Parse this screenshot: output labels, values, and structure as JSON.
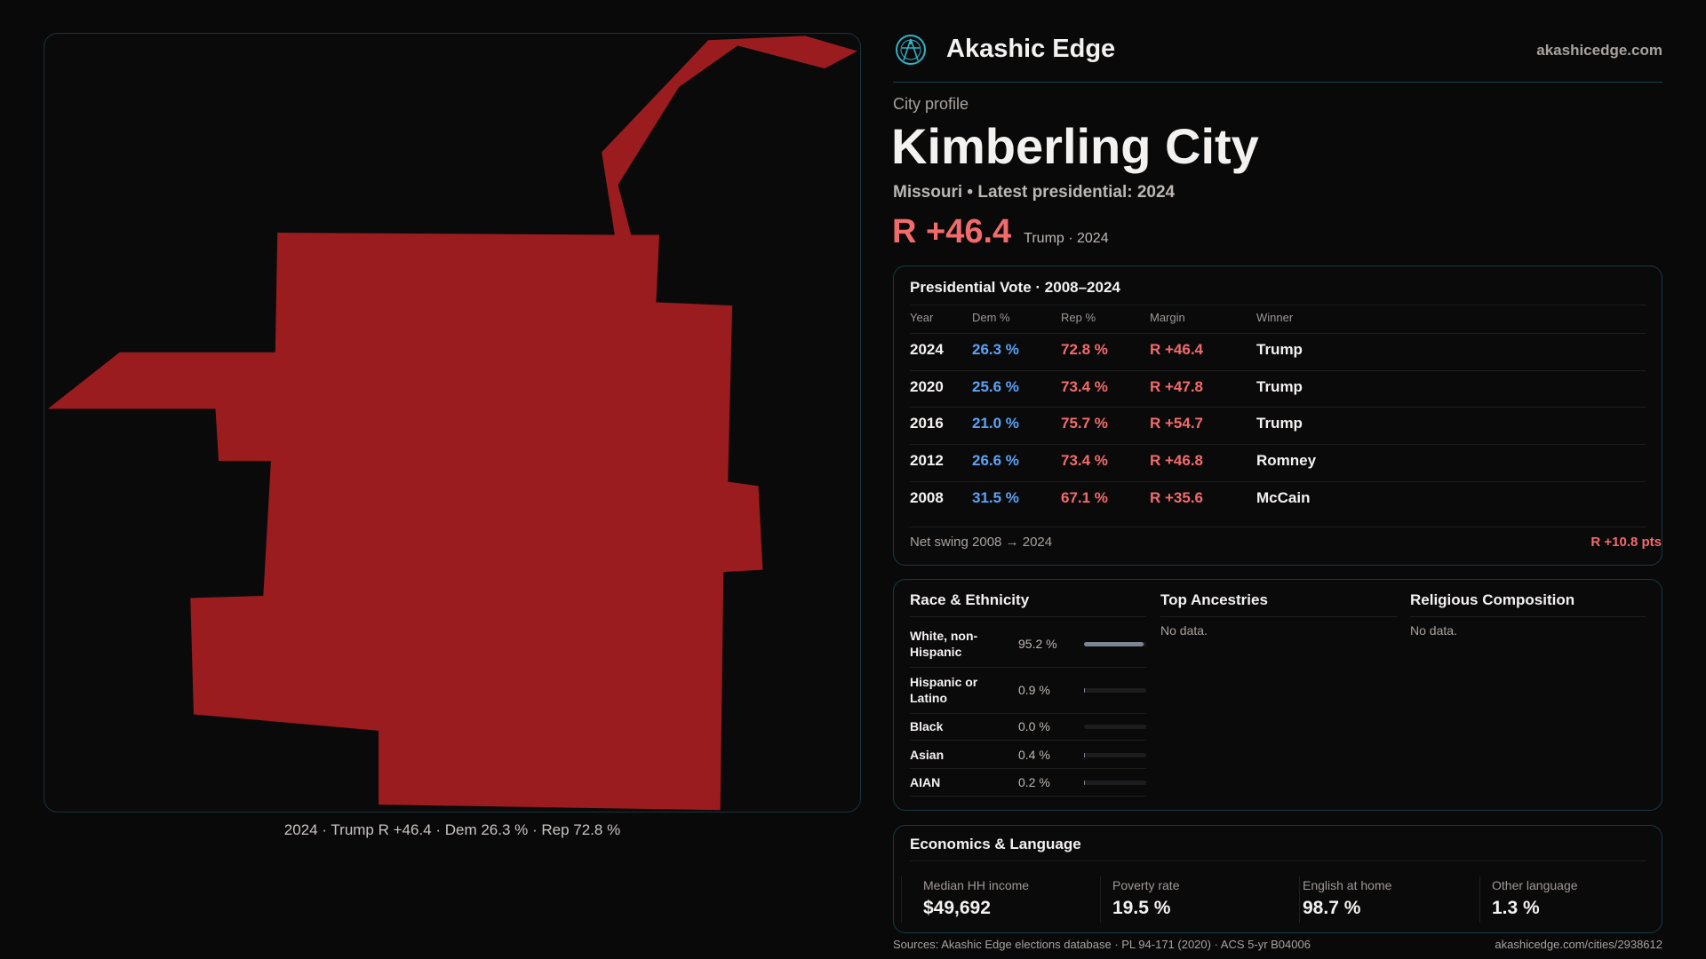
{
  "brand": {
    "name": "Akashic Edge",
    "domain": "akashicedge.com",
    "logo_icon": "compass-figure-icon",
    "accent": "#2fb3c6"
  },
  "profile": {
    "kicker": "City profile",
    "city": "Kimberling City",
    "subtitle": "Missouri • Latest presidential: 2024",
    "margin": "R +46.4",
    "margin_note": "Trump · 2024"
  },
  "map": {
    "caption": "2024 · Trump R +46.4 · Dem 26.3 % · Rep 72.8 %",
    "fill": "#9b1c1f"
  },
  "presidential": {
    "title": "Presidential Vote · 2008–2024",
    "headers": [
      "Year",
      "Dem %",
      "Rep %",
      "Margin",
      "Winner"
    ],
    "rows": [
      {
        "year": "2024",
        "dem": "26.3 %",
        "rep": "72.8 %",
        "margin": "R +46.4",
        "winner": "Trump"
      },
      {
        "year": "2020",
        "dem": "25.6 %",
        "rep": "73.4 %",
        "margin": "R +47.8",
        "winner": "Trump"
      },
      {
        "year": "2016",
        "dem": "21.0 %",
        "rep": "75.7 %",
        "margin": "R +54.7",
        "winner": "Trump"
      },
      {
        "year": "2012",
        "dem": "26.6 %",
        "rep": "73.4 %",
        "margin": "R +46.8",
        "winner": "Romney"
      },
      {
        "year": "2008",
        "dem": "31.5 %",
        "rep": "67.1 %",
        "margin": "R +35.6",
        "winner": "McCain"
      }
    ],
    "swing_label": "Net swing 2008 → 2024",
    "swing_value": "R +10.8 pts"
  },
  "race": {
    "title": "Race & Ethnicity",
    "rows": [
      {
        "label": "White, non-Hispanic",
        "pct": "95.2 %",
        "value": 95.2
      },
      {
        "label": "Hispanic or Latino",
        "pct": "0.9 %",
        "value": 0.9
      },
      {
        "label": "Black",
        "pct": "0.0 %",
        "value": 0.0
      },
      {
        "label": "Asian",
        "pct": "0.4 %",
        "value": 0.4
      },
      {
        "label": "AIAN",
        "pct": "0.2 %",
        "value": 0.2
      }
    ]
  },
  "ancestries": {
    "title": "Top Ancestries",
    "empty": "No data."
  },
  "religion": {
    "title": "Religious Composition",
    "empty": "No data."
  },
  "economics": {
    "title": "Economics & Language",
    "stats": [
      {
        "label": "Median HH income",
        "value": "$49,692"
      },
      {
        "label": "Poverty rate",
        "value": "19.5 %"
      },
      {
        "label": "English at home",
        "value": "98.7 %"
      },
      {
        "label": "Other language",
        "value": "1.3 %"
      }
    ]
  },
  "footer": {
    "sources": "Sources: Akashic Edge elections database · PL 94-171 (2020) · ACS 5-yr B04006",
    "url": "akashicedge.com/cities/2938612"
  }
}
